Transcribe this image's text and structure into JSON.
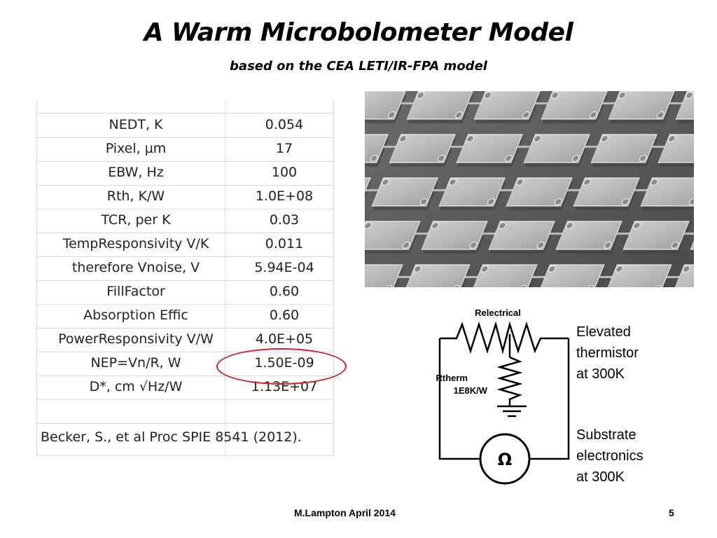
{
  "slide": {
    "title": "A Warm Microbolometer Model",
    "subtitle": "based on the CEA LETI/IR-FPA model"
  },
  "table": {
    "rows": [
      {
        "label": "NEDT, K",
        "value": "0.054"
      },
      {
        "label": "Pixel, µm",
        "value": "17"
      },
      {
        "label": "EBW, Hz",
        "value": "100"
      },
      {
        "label": "Rth, K/W",
        "value": "1.0E+08"
      },
      {
        "label": "TCR, per K",
        "value": "0.03"
      },
      {
        "label": "TempResponsivity V/K",
        "value": "0.011"
      },
      {
        "label": "therefore Vnoise, V",
        "value": "5.94E-04"
      },
      {
        "label": "FillFactor",
        "value": "0.60"
      },
      {
        "label": "Absorption Effic",
        "value": "0.60"
      },
      {
        "label": "PowerResponsivity V/W",
        "value": "4.0E+05"
      },
      {
        "label": "NEP=Vn/R, W",
        "value": "1.50E-09"
      },
      {
        "label": "D*, cm √Hz/W",
        "value": "1.13E+07"
      }
    ],
    "reference": "Becker, S., et al Proc SPIE 8541 (2012).",
    "highlight_color": "#d42020"
  },
  "circuit": {
    "relectrical_label": "Relectrical",
    "rtherm_label": "Rtherm",
    "rtherm_value": "1E8K/W",
    "meter_symbol": "Ω"
  },
  "labels": {
    "elevated": [
      "Elevated",
      "thermistor",
      "at 300K"
    ],
    "substrate": [
      "Substrate",
      "electronics",
      "at 300K"
    ]
  },
  "footer": {
    "author": "M.Lampton April 2014",
    "page": "5"
  }
}
